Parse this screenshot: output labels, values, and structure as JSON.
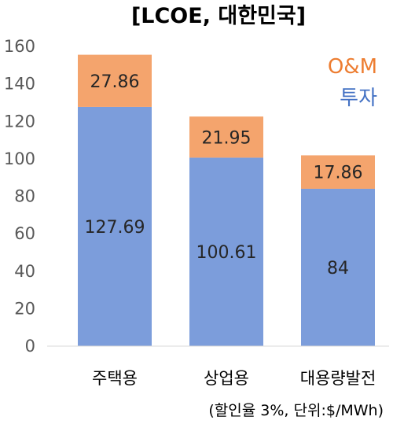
{
  "chart_data": {
    "type": "bar",
    "stacked": true,
    "title": "[LCOE, 대한민국]",
    "categories": [
      "주택용",
      "상업용",
      "대용량발전"
    ],
    "series": [
      {
        "name": "투자",
        "values": [
          127.69,
          100.61,
          84
        ],
        "color": "#7c9ddb"
      },
      {
        "name": "O&M",
        "values": [
          27.86,
          21.95,
          17.86
        ],
        "color": "#f4a46d"
      }
    ],
    "value_labels": {
      "투자": [
        "127.69",
        "100.61",
        "84"
      ],
      "O&M": [
        "27.86",
        "21.95",
        "17.86"
      ]
    },
    "ylim": [
      0,
      160
    ],
    "yticks": [
      "0",
      "20",
      "40",
      "60",
      "80",
      "100",
      "120",
      "140",
      "160"
    ],
    "legend": [
      "O&M",
      "투자"
    ],
    "legend_colors": {
      "O&M": "#ed7d31",
      "투자": "#4472c4"
    },
    "legend_position": "top-right",
    "grid": false,
    "note": "(할인율 3%, 단위:$/MWh)"
  }
}
